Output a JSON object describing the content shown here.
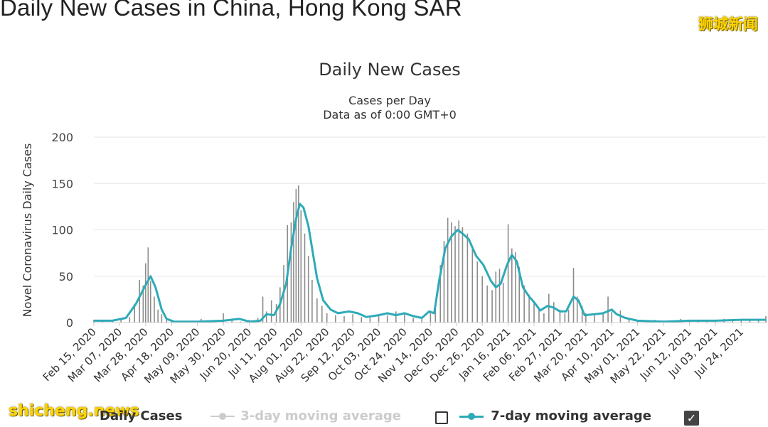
{
  "page": {
    "title": "Daily New Cases in China, Hong Kong SAR",
    "watermark_top": "狮城新闻",
    "watermark_bottom": "shicheng.news"
  },
  "legend": {
    "daily_cases": "Daily Cases",
    "avg3": "3-day moving average",
    "avg7": "7-day moving average",
    "avg3_checked": false,
    "avg7_checked": true
  },
  "colors": {
    "bars": "#8c8c8c",
    "avg7": "#2eaab8",
    "avg3_disabled": "#cccccc",
    "grid": "#e6e6e6"
  },
  "chart_data": {
    "type": "bar",
    "title": "Daily New Cases",
    "subtitle": [
      "Cases per Day",
      "Data as of 0:00 GMT+0"
    ],
    "ylabel": "Novel Coronavirus Daily Cases",
    "xlabel": "",
    "ylim": [
      0,
      200
    ],
    "yticks": [
      0,
      50,
      100,
      150,
      200
    ],
    "grid": true,
    "legend_position": "bottom",
    "x_tick_labels": [
      "Feb 15, 2020",
      "Mar 07, 2020",
      "Mar 28, 2020",
      "Apr 18, 2020",
      "May 09, 2020",
      "May 30, 2020",
      "Jun 20, 2020",
      "Jul 11, 2020",
      "Aug 01, 2020",
      "Aug 22, 2020",
      "Sep 12, 2020",
      "Oct 03, 2020",
      "Oct 24, 2020",
      "Nov 14, 2020",
      "Dec 05, 2020",
      "Dec 26, 2020",
      "Jan 16, 2021",
      "Feb 06, 2021",
      "Feb 27, 2021",
      "Mar 20, 2021",
      "Apr 10, 2021",
      "May 01, 2021",
      "May 22, 2021",
      "Jun 12, 2021",
      "Jul 03, 2021",
      "Jul 24, 2021"
    ],
    "x_start": "2020-02-15",
    "x_end": "2021-08-13",
    "series": [
      {
        "name": "Daily Cases",
        "type": "bar",
        "points": [
          [
            "2020-02-15",
            3
          ],
          [
            "2020-02-22",
            2
          ],
          [
            "2020-03-01",
            2
          ],
          [
            "2020-03-08",
            3
          ],
          [
            "2020-03-15",
            6
          ],
          [
            "2020-03-19",
            20
          ],
          [
            "2020-03-23",
            46
          ],
          [
            "2020-03-26",
            40
          ],
          [
            "2020-03-28",
            64
          ],
          [
            "2020-03-30",
            81
          ],
          [
            "2020-04-01",
            45
          ],
          [
            "2020-04-04",
            28
          ],
          [
            "2020-04-07",
            14
          ],
          [
            "2020-04-10",
            9
          ],
          [
            "2020-04-14",
            3
          ],
          [
            "2020-04-18",
            2
          ],
          [
            "2020-04-25",
            1
          ],
          [
            "2020-05-05",
            1
          ],
          [
            "2020-05-12",
            4
          ],
          [
            "2020-05-20",
            1
          ],
          [
            "2020-05-30",
            10
          ],
          [
            "2020-06-06",
            2
          ],
          [
            "2020-06-13",
            1
          ],
          [
            "2020-06-20",
            3
          ],
          [
            "2020-06-27",
            5
          ],
          [
            "2020-07-01",
            28
          ],
          [
            "2020-07-04",
            12
          ],
          [
            "2020-07-08",
            24
          ],
          [
            "2020-07-12",
            20
          ],
          [
            "2020-07-15",
            38
          ],
          [
            "2020-07-18",
            62
          ],
          [
            "2020-07-21",
            105
          ],
          [
            "2020-07-24",
            108
          ],
          [
            "2020-07-26",
            130
          ],
          [
            "2020-07-28",
            144
          ],
          [
            "2020-07-30",
            148
          ],
          [
            "2020-08-01",
            121
          ],
          [
            "2020-08-04",
            96
          ],
          [
            "2020-08-07",
            72
          ],
          [
            "2020-08-10",
            46
          ],
          [
            "2020-08-14",
            26
          ],
          [
            "2020-08-18",
            18
          ],
          [
            "2020-08-22",
            10
          ],
          [
            "2020-08-29",
            8
          ],
          [
            "2020-09-05",
            7
          ],
          [
            "2020-09-12",
            9
          ],
          [
            "2020-09-19",
            6
          ],
          [
            "2020-09-26",
            5
          ],
          [
            "2020-10-03",
            7
          ],
          [
            "2020-10-10",
            8
          ],
          [
            "2020-10-17",
            12
          ],
          [
            "2020-10-24",
            9
          ],
          [
            "2020-10-31",
            5
          ],
          [
            "2020-11-07",
            4
          ],
          [
            "2020-11-14",
            12
          ],
          [
            "2020-11-18",
            22
          ],
          [
            "2020-11-22",
            62
          ],
          [
            "2020-11-25",
            88
          ],
          [
            "2020-11-28",
            113
          ],
          [
            "2020-12-01",
            108
          ],
          [
            "2020-12-04",
            104
          ],
          [
            "2020-12-07",
            110
          ],
          [
            "2020-12-10",
            103
          ],
          [
            "2020-12-14",
            96
          ],
          [
            "2020-12-18",
            80
          ],
          [
            "2020-12-22",
            66
          ],
          [
            "2020-12-26",
            50
          ],
          [
            "2020-12-30",
            40
          ],
          [
            "2021-01-03",
            35
          ],
          [
            "2021-01-06",
            55
          ],
          [
            "2021-01-09",
            58
          ],
          [
            "2021-01-12",
            43
          ],
          [
            "2021-01-16",
            106
          ],
          [
            "2021-01-19",
            80
          ],
          [
            "2021-01-22",
            76
          ],
          [
            "2021-01-25",
            60
          ],
          [
            "2021-01-29",
            40
          ],
          [
            "2021-02-02",
            30
          ],
          [
            "2021-02-06",
            22
          ],
          [
            "2021-02-10",
            14
          ],
          [
            "2021-02-14",
            10
          ],
          [
            "2021-02-18",
            31
          ],
          [
            "2021-02-22",
            22
          ],
          [
            "2021-02-27",
            14
          ],
          [
            "2021-03-03",
            10
          ],
          [
            "2021-03-06",
            14
          ],
          [
            "2021-03-10",
            59
          ],
          [
            "2021-03-13",
            28
          ],
          [
            "2021-03-17",
            18
          ],
          [
            "2021-03-20",
            10
          ],
          [
            "2021-03-27",
            8
          ],
          [
            "2021-04-03",
            10
          ],
          [
            "2021-04-07",
            28
          ],
          [
            "2021-04-10",
            12
          ],
          [
            "2021-04-17",
            13
          ],
          [
            "2021-04-24",
            5
          ],
          [
            "2021-05-01",
            2
          ],
          [
            "2021-05-08",
            1
          ],
          [
            "2021-05-15",
            3
          ],
          [
            "2021-05-22",
            2
          ],
          [
            "2021-05-29",
            1
          ],
          [
            "2021-06-05",
            4
          ],
          [
            "2021-06-12",
            2
          ],
          [
            "2021-06-19",
            3
          ],
          [
            "2021-06-26",
            1
          ],
          [
            "2021-07-03",
            2
          ],
          [
            "2021-07-10",
            4
          ],
          [
            "2021-07-17",
            3
          ],
          [
            "2021-07-24",
            2
          ],
          [
            "2021-07-31",
            4
          ],
          [
            "2021-08-07",
            2
          ],
          [
            "2021-08-13",
            7
          ]
        ]
      },
      {
        "name": "7-day moving average",
        "type": "line",
        "points": [
          [
            "2020-02-15",
            2
          ],
          [
            "2020-03-01",
            2
          ],
          [
            "2020-03-12",
            5
          ],
          [
            "2020-03-20",
            20
          ],
          [
            "2020-03-27",
            38
          ],
          [
            "2020-04-01",
            50
          ],
          [
            "2020-04-05",
            38
          ],
          [
            "2020-04-10",
            14
          ],
          [
            "2020-04-14",
            4
          ],
          [
            "2020-04-20",
            1
          ],
          [
            "2020-05-09",
            1
          ],
          [
            "2020-05-30",
            2
          ],
          [
            "2020-06-12",
            4
          ],
          [
            "2020-06-20",
            1
          ],
          [
            "2020-06-29",
            2
          ],
          [
            "2020-07-04",
            9
          ],
          [
            "2020-07-10",
            8
          ],
          [
            "2020-07-15",
            20
          ],
          [
            "2020-07-20",
            42
          ],
          [
            "2020-07-24",
            80
          ],
          [
            "2020-07-28",
            112
          ],
          [
            "2020-07-31",
            128
          ],
          [
            "2020-08-03",
            124
          ],
          [
            "2020-08-07",
            104
          ],
          [
            "2020-08-10",
            80
          ],
          [
            "2020-08-14",
            48
          ],
          [
            "2020-08-19",
            24
          ],
          [
            "2020-08-25",
            14
          ],
          [
            "2020-08-31",
            10
          ],
          [
            "2020-09-09",
            12
          ],
          [
            "2020-09-16",
            10
          ],
          [
            "2020-09-23",
            6
          ],
          [
            "2020-10-03",
            8
          ],
          [
            "2020-10-10",
            10
          ],
          [
            "2020-10-17",
            8
          ],
          [
            "2020-10-24",
            10
          ],
          [
            "2020-10-31",
            7
          ],
          [
            "2020-11-07",
            5
          ],
          [
            "2020-11-13",
            12
          ],
          [
            "2020-11-17",
            10
          ],
          [
            "2020-11-21",
            45
          ],
          [
            "2020-11-26",
            80
          ],
          [
            "2020-12-01",
            93
          ],
          [
            "2020-12-06",
            100
          ],
          [
            "2020-12-10",
            96
          ],
          [
            "2020-12-15",
            90
          ],
          [
            "2020-12-21",
            72
          ],
          [
            "2020-12-27",
            62
          ],
          [
            "2021-01-02",
            45
          ],
          [
            "2021-01-06",
            38
          ],
          [
            "2021-01-10",
            42
          ],
          [
            "2021-01-15",
            62
          ],
          [
            "2021-01-19",
            73
          ],
          [
            "2021-01-23",
            66
          ],
          [
            "2021-01-28",
            38
          ],
          [
            "2021-02-02",
            28
          ],
          [
            "2021-02-06",
            22
          ],
          [
            "2021-02-11",
            13
          ],
          [
            "2021-02-17",
            18
          ],
          [
            "2021-02-22",
            16
          ],
          [
            "2021-02-27",
            12
          ],
          [
            "2021-03-04",
            12
          ],
          [
            "2021-03-10",
            28
          ],
          [
            "2021-03-14",
            24
          ],
          [
            "2021-03-19",
            8
          ],
          [
            "2021-03-27",
            9
          ],
          [
            "2021-04-03",
            10
          ],
          [
            "2021-04-10",
            14
          ],
          [
            "2021-04-14",
            9
          ],
          [
            "2021-04-21",
            5
          ],
          [
            "2021-05-01",
            2
          ],
          [
            "2021-05-22",
            1
          ],
          [
            "2021-06-12",
            2
          ],
          [
            "2021-07-03",
            2
          ],
          [
            "2021-07-24",
            3
          ],
          [
            "2021-08-13",
            3
          ]
        ]
      }
    ]
  }
}
